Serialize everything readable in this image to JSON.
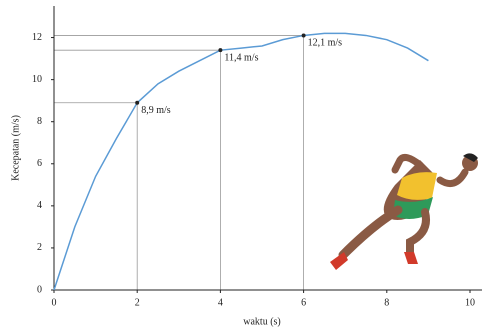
{
  "chart_data": {
    "type": "line",
    "xlabel": "waktu (s)",
    "ylabel": "Kecepatan (m/s)",
    "x": [
      0,
      0.5,
      1,
      1.5,
      2,
      2.5,
      3,
      3.5,
      4,
      4.5,
      5,
      5.5,
      6,
      6.5,
      7,
      7.5,
      8,
      8.5,
      9
    ],
    "values": [
      0,
      3.0,
      5.4,
      7.2,
      8.9,
      9.8,
      10.4,
      10.9,
      11.4,
      11.5,
      11.6,
      11.9,
      12.1,
      12.2,
      12.2,
      12.1,
      11.9,
      11.5,
      10.9
    ],
    "color": "#5b9bd5",
    "xlim": [
      0,
      10
    ],
    "ylim": [
      0,
      13.5
    ],
    "xticks": [
      0,
      2,
      4,
      6,
      8,
      10
    ],
    "yticks": [
      0,
      2,
      4,
      6,
      8,
      10,
      12
    ],
    "annotations": [
      {
        "x": 2,
        "y": 8.9,
        "label": "8,9 m/s"
      },
      {
        "x": 4,
        "y": 11.4,
        "label": "11,4 m/s"
      },
      {
        "x": 6,
        "y": 12.1,
        "label": "12,1 m/s"
      }
    ]
  }
}
